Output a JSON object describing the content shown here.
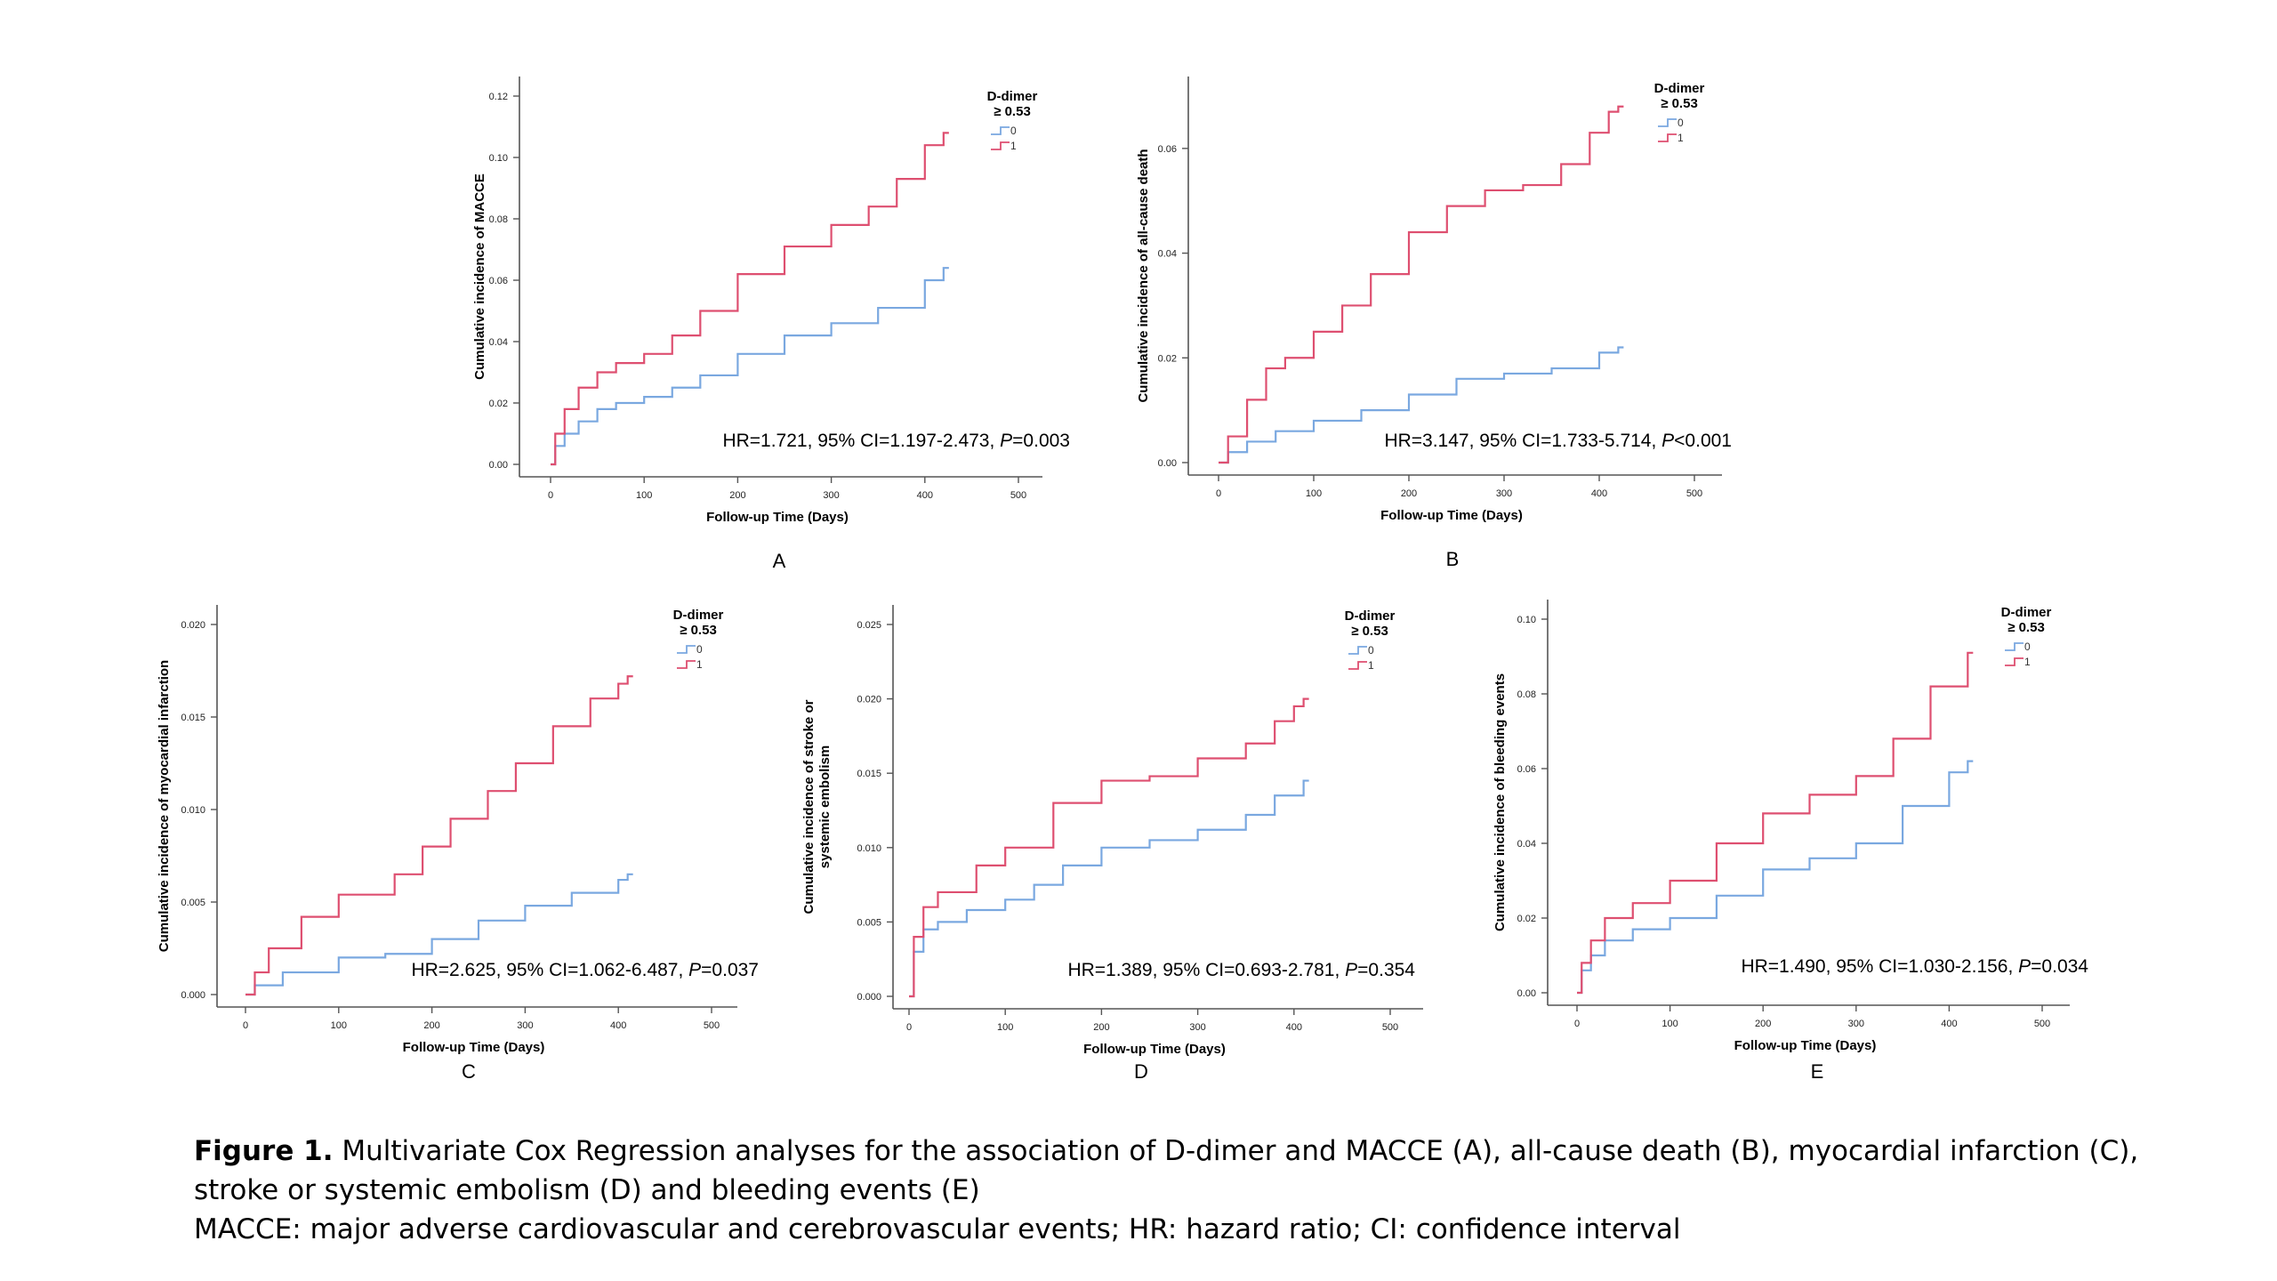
{
  "colors": {
    "group0": "#7aa8e0",
    "group1": "#de4f70",
    "axis": "#555555"
  },
  "legend": {
    "title_line1": "D-dimer",
    "title_line2": "≥ 0.53",
    "labels": [
      "0",
      "1"
    ]
  },
  "caption": {
    "label": "Figure 1.",
    "line1_text": " Multivariate Cox Regression analyses for the association of D-dimer and MACCE (A), all-cause death (B), myocardial infarction (C),",
    "line2_text": "stroke or systemic embolism (D) and bleeding events (E)",
    "line3_text": "MACCE: major adverse cardiovascular and cerebrovascular events; HR: hazard ratio; CI: confidence interval"
  },
  "chart_data": [
    {
      "panel": "A",
      "type": "line",
      "xlabel": "Follow-up Time (Days)",
      "ylabel": "Cumulative incidence of MACCE",
      "xlim": [
        0,
        500
      ],
      "ylim": [
        0,
        0.12
      ],
      "xticks": [
        0,
        100,
        200,
        300,
        400,
        500
      ],
      "yticks": [
        0.0,
        0.02,
        0.04,
        0.06,
        0.08,
        0.1,
        0.12
      ],
      "ytick_labels": [
        "0.00",
        "0.02",
        "0.04",
        "0.06",
        "0.08",
        "0.10",
        "0.12"
      ],
      "annotation": {
        "text": "HR=1.721, 95% CI=1.197-2.473, ",
        "p_label": "P",
        "p_value": "=0.003"
      },
      "series": [
        {
          "name": "0",
          "x": [
            0,
            5,
            15,
            30,
            50,
            70,
            100,
            130,
            160,
            200,
            250,
            300,
            350,
            400,
            420
          ],
          "y": [
            0,
            0.006,
            0.01,
            0.014,
            0.018,
            0.02,
            0.022,
            0.025,
            0.029,
            0.036,
            0.042,
            0.046,
            0.051,
            0.06,
            0.064
          ]
        },
        {
          "name": "1",
          "x": [
            0,
            5,
            15,
            30,
            50,
            70,
            100,
            130,
            160,
            200,
            250,
            300,
            340,
            370,
            400,
            420
          ],
          "y": [
            0,
            0.01,
            0.018,
            0.025,
            0.03,
            0.033,
            0.036,
            0.042,
            0.05,
            0.062,
            0.071,
            0.078,
            0.084,
            0.093,
            0.104,
            0.108
          ]
        }
      ]
    },
    {
      "panel": "B",
      "type": "line",
      "xlabel": "Follow-up Time (Days)",
      "ylabel": "Cumulative incidence of all-cause death",
      "xlim": [
        0,
        500
      ],
      "ylim": [
        0,
        0.07
      ],
      "xticks": [
        0,
        100,
        200,
        300,
        400,
        500
      ],
      "yticks": [
        0.0,
        0.02,
        0.04,
        0.06
      ],
      "ytick_labels": [
        "0.00",
        "0.02",
        "0.04",
        "0.06"
      ],
      "annotation": {
        "text": "HR=3.147, 95% CI=1.733-5.714, ",
        "p_label": "P",
        "p_value": "<0.001"
      },
      "series": [
        {
          "name": "0",
          "x": [
            0,
            10,
            30,
            60,
            100,
            150,
            200,
            250,
            300,
            350,
            400,
            420
          ],
          "y": [
            0,
            0.002,
            0.004,
            0.006,
            0.008,
            0.01,
            0.013,
            0.016,
            0.017,
            0.018,
            0.021,
            0.022
          ]
        },
        {
          "name": "1",
          "x": [
            0,
            10,
            30,
            50,
            70,
            100,
            130,
            160,
            200,
            240,
            280,
            320,
            360,
            390,
            410,
            420
          ],
          "y": [
            0,
            0.005,
            0.012,
            0.018,
            0.02,
            0.025,
            0.03,
            0.036,
            0.044,
            0.049,
            0.052,
            0.053,
            0.057,
            0.063,
            0.067,
            0.068
          ]
        }
      ]
    },
    {
      "panel": "C",
      "type": "line",
      "xlabel": "Follow-up Time (Days)",
      "ylabel": "Cumulative incidence of myocardial infarction",
      "xlim": [
        0,
        500
      ],
      "ylim": [
        0,
        0.02
      ],
      "xticks": [
        0,
        100,
        200,
        300,
        400,
        500
      ],
      "yticks": [
        0.0,
        0.005,
        0.01,
        0.015,
        0.02
      ],
      "ytick_labels": [
        "0.000",
        "0.005",
        "0.010",
        "0.015",
        "0.020"
      ],
      "annotation": {
        "text": "HR=2.625, 95% CI=1.062-6.487, ",
        "p_label": "P",
        "p_value": "=0.037"
      },
      "series": [
        {
          "name": "0",
          "x": [
            0,
            10,
            40,
            100,
            150,
            200,
            250,
            300,
            350,
            400,
            410
          ],
          "y": [
            0,
            0.0005,
            0.0012,
            0.002,
            0.0022,
            0.003,
            0.004,
            0.0048,
            0.0055,
            0.0062,
            0.0065
          ]
        },
        {
          "name": "1",
          "x": [
            0,
            10,
            25,
            60,
            100,
            160,
            190,
            220,
            260,
            290,
            330,
            370,
            400,
            410
          ],
          "y": [
            0,
            0.0012,
            0.0025,
            0.0042,
            0.0054,
            0.0065,
            0.008,
            0.0095,
            0.011,
            0.0125,
            0.0145,
            0.016,
            0.0168,
            0.0172
          ]
        }
      ]
    },
    {
      "panel": "D",
      "type": "line",
      "xlabel": "Follow-up Time (Days)",
      "ylabel": "Cumulative incidence of stroke or systemic embolism",
      "xlim": [
        0,
        500
      ],
      "ylim": [
        0,
        0.025
      ],
      "xticks": [
        0,
        100,
        200,
        300,
        400,
        500
      ],
      "yticks": [
        0.0,
        0.005,
        0.01,
        0.015,
        0.02,
        0.025
      ],
      "ytick_labels": [
        "0.000",
        "0.005",
        "0.010",
        "0.015",
        "0.020",
        "0.025"
      ],
      "annotation": {
        "text": "HR=1.389, 95% CI=0.693-2.781, ",
        "p_label": "P",
        "p_value": "=0.354"
      },
      "series": [
        {
          "name": "0",
          "x": [
            0,
            5,
            15,
            30,
            60,
            100,
            130,
            160,
            200,
            250,
            300,
            350,
            380,
            410
          ],
          "y": [
            0,
            0.003,
            0.0045,
            0.005,
            0.0058,
            0.0065,
            0.0075,
            0.0088,
            0.01,
            0.0105,
            0.0112,
            0.0122,
            0.0135,
            0.0145
          ]
        },
        {
          "name": "1",
          "x": [
            0,
            5,
            15,
            30,
            70,
            100,
            150,
            200,
            250,
            300,
            350,
            380,
            400,
            410
          ],
          "y": [
            0,
            0.004,
            0.006,
            0.007,
            0.0088,
            0.01,
            0.013,
            0.0145,
            0.0148,
            0.016,
            0.017,
            0.0185,
            0.0195,
            0.02
          ]
        }
      ]
    },
    {
      "panel": "E",
      "type": "line",
      "xlabel": "Follow-up Time (Days)",
      "ylabel": "Cumulative incidence of bleeding events",
      "xlim": [
        0,
        500
      ],
      "ylim": [
        0,
        0.1
      ],
      "xticks": [
        0,
        100,
        200,
        300,
        400,
        500
      ],
      "yticks": [
        0.0,
        0.02,
        0.04,
        0.06,
        0.08,
        0.1
      ],
      "ytick_labels": [
        "0.00",
        "0.02",
        "0.04",
        "0.06",
        "0.08",
        "0.10"
      ],
      "annotation": {
        "text": "HR=1.490, 95% CI=1.030-2.156, ",
        "p_label": "P",
        "p_value": "=0.034"
      },
      "series": [
        {
          "name": "0",
          "x": [
            0,
            5,
            15,
            30,
            60,
            100,
            150,
            200,
            250,
            300,
            350,
            400,
            420
          ],
          "y": [
            0,
            0.006,
            0.01,
            0.014,
            0.017,
            0.02,
            0.026,
            0.033,
            0.036,
            0.04,
            0.05,
            0.059,
            0.062
          ]
        },
        {
          "name": "1",
          "x": [
            0,
            5,
            15,
            30,
            60,
            100,
            150,
            200,
            250,
            300,
            340,
            380,
            420
          ],
          "y": [
            0,
            0.008,
            0.014,
            0.02,
            0.024,
            0.03,
            0.04,
            0.048,
            0.053,
            0.058,
            0.068,
            0.082,
            0.091
          ]
        }
      ]
    }
  ]
}
